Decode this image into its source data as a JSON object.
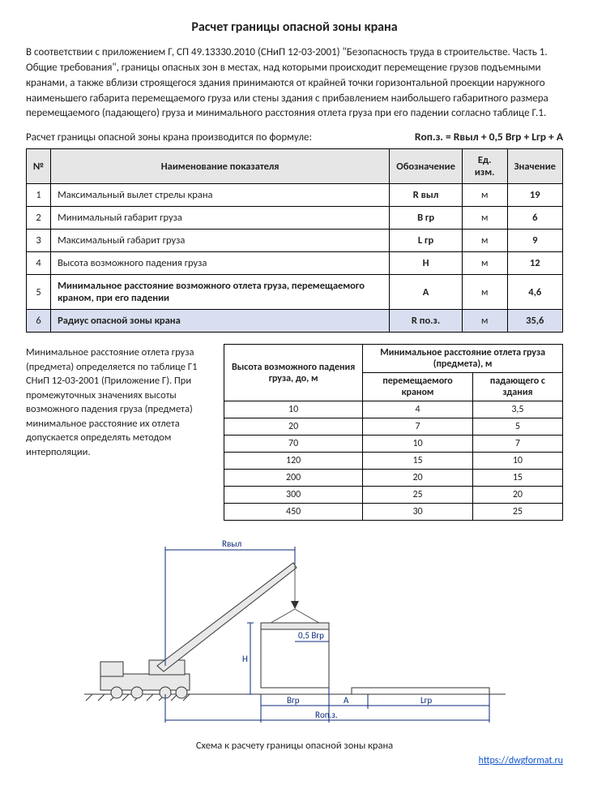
{
  "title": "Расчет границы опасной зоны крана",
  "intro": "В соответствии с приложением Г, СП 49.13330.2010 (СНиП 12-03-2001) \"Безопасность труда в строительстве. Часть 1. Общие требования\", границы опасных зон в местах, над которыми происходит перемещение грузов подъемными кранами, а также вблизи строящегося здания принимаются от крайней точки горизонтальной проекции наружного наименьшего габарита перемещаемого груза или стены здания с прибавлением наибольшего габаритного размера перемещаемого (падающего) груза и минимального расстояния отлета груза при его падении согласно таблице Г.1.",
  "formula_label": "Расчет границы опасной зоны крана производится по формуле:",
  "formula": "Rоп.з. = Rвыл + 0,5 Bгр + Lгр + A",
  "main_table": {
    "headers": [
      "№",
      "Наименование показателя",
      "Обозначение",
      "Ед. изм.",
      "Значение"
    ],
    "rows": [
      {
        "n": "1",
        "name": "Максимальный вылет стрелы крана",
        "sym": "R выл",
        "unit": "м",
        "val": "19",
        "hl": false,
        "bold": false
      },
      {
        "n": "2",
        "name": "Минимальный габарит груза",
        "sym": "B гр",
        "unit": "м",
        "val": "6",
        "hl": false,
        "bold": false
      },
      {
        "n": "3",
        "name": "Максимальный габарит груза",
        "sym": "L гр",
        "unit": "м",
        "val": "9",
        "hl": false,
        "bold": false
      },
      {
        "n": "4",
        "name": "Высота возможного падения груза",
        "sym": "H",
        "unit": "м",
        "val": "12",
        "hl": false,
        "bold": false
      },
      {
        "n": "5",
        "name": "Минимальное расстояние возможного отлета груза, перемещаемого краном, при его падении",
        "sym": "A",
        "unit": "м",
        "val": "4,6",
        "hl": false,
        "bold": true
      },
      {
        "n": "6",
        "name": "Радиус опасной зоны крана",
        "sym": "R по.з.",
        "unit": "м",
        "val": "35,6",
        "hl": true,
        "bold": true
      }
    ]
  },
  "g1_note": "Минимальное расстояние отлета груза (предмета) определяется по таблице Г1 СНиП 12-03-2001 (Приложение Г). При промежуточных значениях высоты возможного падения груза (предмета) минимальное расстояние их отлета допускается определять методом интерполяции.",
  "g1_table": {
    "h1": "Высота возможного падения груза, до, м",
    "h2": "Минимальное расстояние отлета груза (предмета), м",
    "sub1": "перемещаемого краном",
    "sub2": "падающего с здания",
    "rows": [
      [
        "10",
        "4",
        "3,5"
      ],
      [
        "20",
        "7",
        "5"
      ],
      [
        "70",
        "10",
        "7"
      ],
      [
        "120",
        "15",
        "10"
      ],
      [
        "200",
        "20",
        "15"
      ],
      [
        "300",
        "25",
        "20"
      ],
      [
        "450",
        "30",
        "25"
      ]
    ]
  },
  "diagram": {
    "labels": {
      "Rvyl": "Rвыл",
      "H": "H",
      "halfB": "0,5 Bгр",
      "Bgr": "Bгр",
      "A": "A",
      "Lgr": "Lгр",
      "Ropz": "Rоп.з."
    },
    "colors": {
      "dim": "#0a2a7a",
      "outline": "#333333",
      "fill": "#e8e8e8",
      "ground": "#333333"
    }
  },
  "caption": "Схема к расчету границы опасной зоны крана",
  "link_text": "https://dwgformat.ru",
  "link_href": "https://dwgformat.ru"
}
